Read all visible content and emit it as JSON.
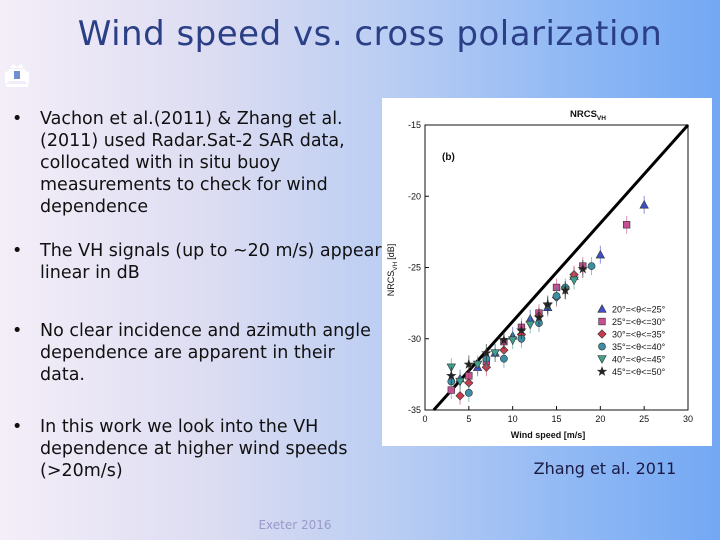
{
  "slide": {
    "title": "Wind speed vs. cross polarization",
    "bullets": [
      "Vachon et al.(2011) & Zhang et al. (2011) used Radar.Sat-2 SAR data, collocated with in situ buoy measurements to check for wind dependence",
      "The VH signals (up to ~20 m/s) appear linear in dB",
      "No clear incidence and azimuth angle dependence are apparent in their data.",
      "In this work we look into the VH dependence at higher wind speeds (>20m/s)"
    ],
    "footer": "Exeter 2016",
    "caption": "Zhang et al. 2011",
    "bullet_color": "#111111",
    "title_color": "#2b3f86",
    "logo_icon": "crest-icon"
  },
  "chart_data": {
    "type": "scatter",
    "title": "NRCS",
    "title_sub": "VH",
    "panel_label": "(b)",
    "xlabel": "Wind speed [m/s]",
    "ylabel": "NRCS",
    "ylabel_sub": "VH",
    "ylabel_unit": "[dB]",
    "xlim": [
      0,
      30
    ],
    "ylim": [
      -35,
      -15
    ],
    "xticks": [
      0,
      5,
      10,
      15,
      20,
      25,
      30
    ],
    "yticks": [
      -15,
      -20,
      -25,
      -30,
      -35
    ],
    "legend_position": "right",
    "fit_line": {
      "x": [
        1,
        30
      ],
      "y": [
        -36.2,
        -14.6
      ]
    },
    "series": [
      {
        "name": "20°=<θ<=25°",
        "marker": "triangle-up",
        "color": "#3e4fc4",
        "x": [
          4,
          6,
          8,
          10,
          12,
          14,
          17,
          20,
          25
        ],
        "y": [
          -32.8,
          -32.0,
          -31.0,
          -29.8,
          -28.6,
          -27.8,
          -25.6,
          -24.1,
          -20.6
        ]
      },
      {
        "name": "25°=<θ<=30°",
        "marker": "square",
        "color": "#c44f93",
        "x": [
          3,
          5,
          7,
          9,
          11,
          13,
          15,
          18,
          23
        ],
        "y": [
          -33.6,
          -32.6,
          -31.6,
          -30.2,
          -29.2,
          -28.2,
          -26.4,
          -24.9,
          -22.0
        ]
      },
      {
        "name": "30°=<θ<=35°",
        "marker": "diamond",
        "color": "#c83a4e",
        "x": [
          4,
          5,
          7,
          9,
          11,
          13,
          15,
          17
        ],
        "y": [
          -34.0,
          -33.1,
          -32.0,
          -30.8,
          -29.7,
          -28.4,
          -27.1,
          -25.5
        ]
      },
      {
        "name": "35°=<θ<=40°",
        "marker": "circle",
        "color": "#3b8ea3",
        "x": [
          3,
          5,
          7,
          9,
          11,
          13,
          15,
          16,
          19
        ],
        "y": [
          -33.0,
          -33.8,
          -31.4,
          -31.4,
          -30.0,
          -28.9,
          -27.0,
          -26.4,
          -24.9
        ]
      },
      {
        "name": "40°=<θ<=45°",
        "marker": "triangle-down",
        "color": "#3ea08d",
        "x": [
          3,
          4,
          6,
          8,
          10,
          12,
          14,
          16,
          17
        ],
        "y": [
          -32.0,
          -33.0,
          -31.8,
          -31.0,
          -30.1,
          -29.0,
          -27.7,
          -26.6,
          -25.9
        ]
      },
      {
        "name": "45°=<θ<=50°",
        "marker": "star",
        "color": "#222222",
        "x": [
          3,
          5,
          7,
          9,
          11,
          13,
          14,
          16,
          18
        ],
        "y": [
          -32.6,
          -31.8,
          -31.0,
          -30.1,
          -29.4,
          -28.5,
          -27.6,
          -26.6,
          -25.1
        ]
      }
    ]
  }
}
